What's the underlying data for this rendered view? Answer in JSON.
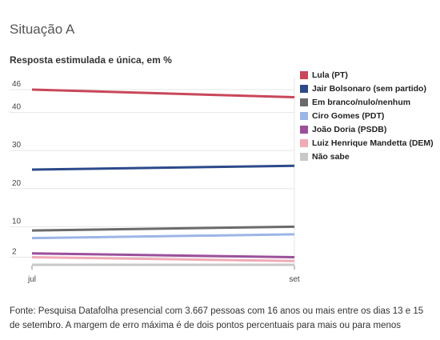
{
  "heading": "Situação A",
  "subheading": "Resposta estimulada e única, em %",
  "footnote": "Fonte: Pesquisa Datafolha presencial com 3.667 pessoas com 16 anos ou mais entre os dias 13 e 15 de setembro. A margem de erro máxima é de dois pontos percentuais para mais ou para menos",
  "chart_data": {
    "type": "line",
    "title": "Situação A",
    "subtitle": "Resposta estimulada e única, em %",
    "categories": [
      "jul",
      "set"
    ],
    "y_ticks": [
      2,
      10,
      20,
      30,
      40,
      46
    ],
    "ylim": [
      0,
      46
    ],
    "grid": true,
    "legend_position": "right",
    "series": [
      {
        "name": "Lula (PT)",
        "color": "#c9475a",
        "values": [
          46,
          44
        ]
      },
      {
        "name": "Jair Bolsonaro (sem partido)",
        "color": "#2c4a8a",
        "values": [
          25,
          26
        ]
      },
      {
        "name": "Em branco/nulo/nenhum",
        "color": "#6b6b6b",
        "values": [
          9,
          10
        ]
      },
      {
        "name": "Ciro Gomes (PDT)",
        "color": "#9cb5e6",
        "values": [
          7,
          8
        ]
      },
      {
        "name": "João Doria (PSDB)",
        "color": "#9b4f9b",
        "values": [
          3,
          2
        ]
      },
      {
        "name": "Luiz Henrique Mandetta (DEM)",
        "color": "#f0aab5",
        "values": [
          2,
          1
        ]
      },
      {
        "name": "Não sabe",
        "color": "#c8c8c8",
        "values": [
          0,
          0
        ]
      }
    ]
  }
}
